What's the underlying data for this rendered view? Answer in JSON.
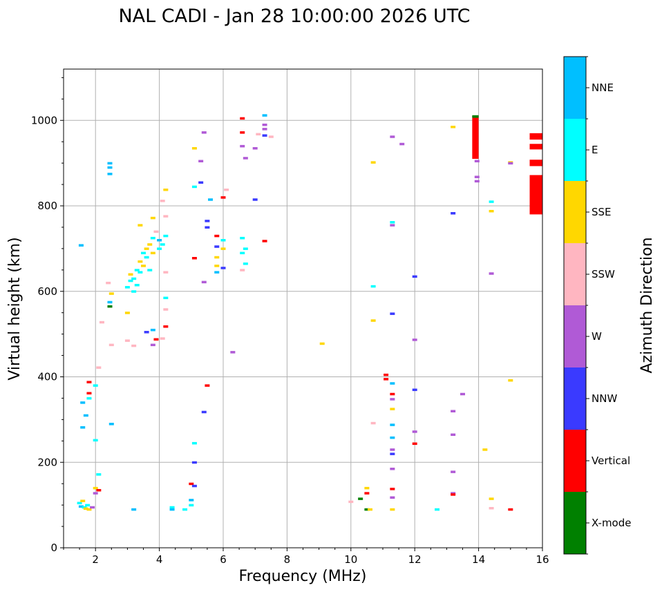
{
  "chart_data": {
    "type": "scatter",
    "title": "NAL CADI - Jan 28 10:00:00 2026 UTC",
    "xlabel": "Frequency (MHz)",
    "ylabel": "Virtual height (km)",
    "xlim": [
      1,
      16
    ],
    "ylim": [
      0,
      1120
    ],
    "xticks": [
      2,
      4,
      6,
      8,
      10,
      12,
      14,
      16
    ],
    "yticks": [
      0,
      200,
      400,
      600,
      800,
      1000
    ],
    "grid": true,
    "colorbar": {
      "label": "Azimuth Direction",
      "categories": [
        {
          "name": "X-mode",
          "color": "#008000"
        },
        {
          "name": "Vertical",
          "color": "#ff0000"
        },
        {
          "name": "NNW",
          "color": "#3a3aff"
        },
        {
          "name": "W",
          "color": "#b05ad6"
        },
        {
          "name": "SSW",
          "color": "#ffb6c1"
        },
        {
          "name": "SSE",
          "color": "#ffd700"
        },
        {
          "name": "E",
          "color": "#00ffff"
        },
        {
          "name": "NNE",
          "color": "#00bfff"
        }
      ]
    },
    "points": [
      {
        "f": 1.5,
        "h": 105,
        "c": "E"
      },
      {
        "f": 1.55,
        "h": 97,
        "c": "NNE"
      },
      {
        "f": 1.6,
        "h": 110,
        "c": "SSE"
      },
      {
        "f": 1.65,
        "h": 95,
        "c": "E"
      },
      {
        "f": 1.7,
        "h": 92,
        "c": "SSE"
      },
      {
        "f": 1.75,
        "h": 100,
        "c": "E"
      },
      {
        "f": 1.8,
        "h": 90,
        "c": "SSE"
      },
      {
        "f": 1.9,
        "h": 95,
        "c": "W"
      },
      {
        "f": 1.55,
        "h": 708,
        "c": "NNE"
      },
      {
        "f": 1.6,
        "h": 282,
        "c": "NNE"
      },
      {
        "f": 1.6,
        "h": 340,
        "c": "NNE"
      },
      {
        "f": 1.7,
        "h": 310,
        "c": "NNE"
      },
      {
        "f": 1.8,
        "h": 350,
        "c": "E"
      },
      {
        "f": 1.8,
        "h": 362,
        "c": "Vertical"
      },
      {
        "f": 1.8,
        "h": 388,
        "c": "Vertical"
      },
      {
        "f": 2.0,
        "h": 380,
        "c": "E"
      },
      {
        "f": 2.0,
        "h": 252,
        "c": "E"
      },
      {
        "f": 2.0,
        "h": 140,
        "c": "SSE"
      },
      {
        "f": 2.0,
        "h": 128,
        "c": "W"
      },
      {
        "f": 2.1,
        "h": 172,
        "c": "E"
      },
      {
        "f": 2.1,
        "h": 135,
        "c": "Vertical"
      },
      {
        "f": 2.1,
        "h": 422,
        "c": "SSW"
      },
      {
        "f": 2.2,
        "h": 528,
        "c": "SSW"
      },
      {
        "f": 2.4,
        "h": 620,
        "c": "SSW"
      },
      {
        "f": 2.45,
        "h": 575,
        "c": "NNE"
      },
      {
        "f": 2.45,
        "h": 565,
        "c": "X-mode"
      },
      {
        "f": 2.45,
        "h": 890,
        "c": "NNE"
      },
      {
        "f": 2.45,
        "h": 875,
        "c": "NNE"
      },
      {
        "f": 2.45,
        "h": 900,
        "c": "NNE"
      },
      {
        "f": 2.5,
        "h": 290,
        "c": "NNE"
      },
      {
        "f": 2.5,
        "h": 475,
        "c": "SSW"
      },
      {
        "f": 2.5,
        "h": 595,
        "c": "SSE"
      },
      {
        "f": 3.0,
        "h": 485,
        "c": "SSW"
      },
      {
        "f": 3.0,
        "h": 550,
        "c": "SSE"
      },
      {
        "f": 3.0,
        "h": 610,
        "c": "E"
      },
      {
        "f": 3.1,
        "h": 625,
        "c": "E"
      },
      {
        "f": 3.1,
        "h": 640,
        "c": "SSE"
      },
      {
        "f": 3.2,
        "h": 600,
        "c": "E"
      },
      {
        "f": 3.2,
        "h": 630,
        "c": "E"
      },
      {
        "f": 3.3,
        "h": 650,
        "c": "E"
      },
      {
        "f": 3.3,
        "h": 615,
        "c": "E"
      },
      {
        "f": 3.4,
        "h": 670,
        "c": "SSE"
      },
      {
        "f": 3.4,
        "h": 645,
        "c": "E"
      },
      {
        "f": 3.5,
        "h": 690,
        "c": "E"
      },
      {
        "f": 3.5,
        "h": 660,
        "c": "SSE"
      },
      {
        "f": 3.6,
        "h": 680,
        "c": "E"
      },
      {
        "f": 3.6,
        "h": 700,
        "c": "SSE"
      },
      {
        "f": 3.7,
        "h": 650,
        "c": "E"
      },
      {
        "f": 3.7,
        "h": 710,
        "c": "SSE"
      },
      {
        "f": 3.8,
        "h": 725,
        "c": "E"
      },
      {
        "f": 3.8,
        "h": 690,
        "c": "SSE"
      },
      {
        "f": 3.9,
        "h": 740,
        "c": "SSW"
      },
      {
        "f": 4.0,
        "h": 700,
        "c": "E"
      },
      {
        "f": 4.0,
        "h": 720,
        "c": "NNE"
      },
      {
        "f": 4.1,
        "h": 710,
        "c": "E"
      },
      {
        "f": 4.2,
        "h": 730,
        "c": "E"
      },
      {
        "f": 3.4,
        "h": 755,
        "c": "SSE"
      },
      {
        "f": 3.8,
        "h": 772,
        "c": "SSE"
      },
      {
        "f": 4.2,
        "h": 776,
        "c": "SSW"
      },
      {
        "f": 4.2,
        "h": 838,
        "c": "SSE"
      },
      {
        "f": 4.1,
        "h": 812,
        "c": "SSW"
      },
      {
        "f": 3.2,
        "h": 473,
        "c": "SSW"
      },
      {
        "f": 3.6,
        "h": 505,
        "c": "NNW"
      },
      {
        "f": 3.8,
        "h": 510,
        "c": "NNE"
      },
      {
        "f": 3.8,
        "h": 475,
        "c": "W"
      },
      {
        "f": 3.9,
        "h": 488,
        "c": "Vertical"
      },
      {
        "f": 4.1,
        "h": 490,
        "c": "SSW"
      },
      {
        "f": 4.2,
        "h": 518,
        "c": "Vertical"
      },
      {
        "f": 4.2,
        "h": 558,
        "c": "SSW"
      },
      {
        "f": 4.2,
        "h": 585,
        "c": "E"
      },
      {
        "f": 4.2,
        "h": 645,
        "c": "SSW"
      },
      {
        "f": 3.2,
        "h": 90,
        "c": "NNE"
      },
      {
        "f": 4.4,
        "h": 95,
        "c": "E"
      },
      {
        "f": 4.4,
        "h": 90,
        "c": "NNE"
      },
      {
        "f": 4.8,
        "h": 90,
        "c": "E"
      },
      {
        "f": 5.0,
        "h": 100,
        "c": "E"
      },
      {
        "f": 5.0,
        "h": 112,
        "c": "NNE"
      },
      {
        "f": 5.0,
        "h": 150,
        "c": "Vertical"
      },
      {
        "f": 5.1,
        "h": 145,
        "c": "NNW"
      },
      {
        "f": 5.1,
        "h": 200,
        "c": "NNW"
      },
      {
        "f": 5.1,
        "h": 245,
        "c": "E"
      },
      {
        "f": 5.1,
        "h": 678,
        "c": "Vertical"
      },
      {
        "f": 5.1,
        "h": 845,
        "c": "E"
      },
      {
        "f": 5.1,
        "h": 935,
        "c": "SSE"
      },
      {
        "f": 5.3,
        "h": 855,
        "c": "NNW"
      },
      {
        "f": 5.3,
        "h": 905,
        "c": "W"
      },
      {
        "f": 5.4,
        "h": 972,
        "c": "W"
      },
      {
        "f": 5.4,
        "h": 622,
        "c": "W"
      },
      {
        "f": 5.4,
        "h": 318,
        "c": "NNW"
      },
      {
        "f": 5.5,
        "h": 380,
        "c": "Vertical"
      },
      {
        "f": 5.5,
        "h": 750,
        "c": "NNW"
      },
      {
        "f": 5.5,
        "h": 765,
        "c": "NNW"
      },
      {
        "f": 5.6,
        "h": 815,
        "c": "NNE"
      },
      {
        "f": 5.8,
        "h": 730,
        "c": "Vertical"
      },
      {
        "f": 5.8,
        "h": 705,
        "c": "NNW"
      },
      {
        "f": 5.8,
        "h": 680,
        "c": "SSE"
      },
      {
        "f": 5.8,
        "h": 660,
        "c": "SSE"
      },
      {
        "f": 5.8,
        "h": 645,
        "c": "NNE"
      },
      {
        "f": 6.0,
        "h": 820,
        "c": "Vertical"
      },
      {
        "f": 6.0,
        "h": 720,
        "c": "E"
      },
      {
        "f": 6.0,
        "h": 700,
        "c": "SSE"
      },
      {
        "f": 6.0,
        "h": 655,
        "c": "NNW"
      },
      {
        "f": 6.1,
        "h": 838,
        "c": "SSW"
      },
      {
        "f": 6.3,
        "h": 458,
        "c": "W"
      },
      {
        "f": 6.6,
        "h": 1005,
        "c": "Vertical"
      },
      {
        "f": 6.6,
        "h": 972,
        "c": "Vertical"
      },
      {
        "f": 6.6,
        "h": 940,
        "c": "W"
      },
      {
        "f": 6.6,
        "h": 725,
        "c": "E"
      },
      {
        "f": 6.6,
        "h": 690,
        "c": "E"
      },
      {
        "f": 6.6,
        "h": 650,
        "c": "SSW"
      },
      {
        "f": 6.7,
        "h": 912,
        "c": "W"
      },
      {
        "f": 6.7,
        "h": 665,
        "c": "E"
      },
      {
        "f": 6.7,
        "h": 700,
        "c": "E"
      },
      {
        "f": 7.0,
        "h": 935,
        "c": "W"
      },
      {
        "f": 7.0,
        "h": 815,
        "c": "NNW"
      },
      {
        "f": 7.1,
        "h": 968,
        "c": "SSW"
      },
      {
        "f": 7.3,
        "h": 1012,
        "c": "NNE"
      },
      {
        "f": 7.3,
        "h": 990,
        "c": "W"
      },
      {
        "f": 7.3,
        "h": 980,
        "c": "W"
      },
      {
        "f": 7.3,
        "h": 965,
        "c": "NNW"
      },
      {
        "f": 7.3,
        "h": 718,
        "c": "Vertical"
      },
      {
        "f": 7.5,
        "h": 962,
        "c": "SSW"
      },
      {
        "f": 9.1,
        "h": 478,
        "c": "SSE"
      },
      {
        "f": 10.0,
        "h": 108,
        "c": "SSW"
      },
      {
        "f": 10.3,
        "h": 115,
        "c": "X-mode"
      },
      {
        "f": 10.5,
        "h": 90,
        "c": "X-mode"
      },
      {
        "f": 10.5,
        "h": 128,
        "c": "Vertical"
      },
      {
        "f": 10.6,
        "h": 90,
        "c": "SSE"
      },
      {
        "f": 10.5,
        "h": 140,
        "c": "SSE"
      },
      {
        "f": 10.7,
        "h": 292,
        "c": "SSW"
      },
      {
        "f": 10.7,
        "h": 532,
        "c": "SSE"
      },
      {
        "f": 10.7,
        "h": 612,
        "c": "E"
      },
      {
        "f": 10.7,
        "h": 902,
        "c": "SSE"
      },
      {
        "f": 11.1,
        "h": 405,
        "c": "Vertical"
      },
      {
        "f": 11.1,
        "h": 395,
        "c": "Vertical"
      },
      {
        "f": 11.3,
        "h": 385,
        "c": "NNE"
      },
      {
        "f": 11.3,
        "h": 360,
        "c": "Vertical"
      },
      {
        "f": 11.3,
        "h": 348,
        "c": "W"
      },
      {
        "f": 11.3,
        "h": 325,
        "c": "SSE"
      },
      {
        "f": 11.3,
        "h": 288,
        "c": "NNE"
      },
      {
        "f": 11.3,
        "h": 258,
        "c": "NNE"
      },
      {
        "f": 11.3,
        "h": 230,
        "c": "W"
      },
      {
        "f": 11.3,
        "h": 220,
        "c": "NNW"
      },
      {
        "f": 11.3,
        "h": 185,
        "c": "W"
      },
      {
        "f": 11.3,
        "h": 138,
        "c": "Vertical"
      },
      {
        "f": 11.3,
        "h": 118,
        "c": "W"
      },
      {
        "f": 11.3,
        "h": 90,
        "c": "SSE"
      },
      {
        "f": 11.3,
        "h": 548,
        "c": "NNW"
      },
      {
        "f": 11.3,
        "h": 755,
        "c": "W"
      },
      {
        "f": 11.3,
        "h": 762,
        "c": "E"
      },
      {
        "f": 11.3,
        "h": 962,
        "c": "W"
      },
      {
        "f": 11.6,
        "h": 945,
        "c": "W"
      },
      {
        "f": 12.0,
        "h": 635,
        "c": "NNW"
      },
      {
        "f": 12.0,
        "h": 487,
        "c": "W"
      },
      {
        "f": 12.0,
        "h": 370,
        "c": "NNW"
      },
      {
        "f": 12.0,
        "h": 272,
        "c": "W"
      },
      {
        "f": 12.0,
        "h": 244,
        "c": "Vertical"
      },
      {
        "f": 12.7,
        "h": 90,
        "c": "E"
      },
      {
        "f": 13.2,
        "h": 783,
        "c": "NNW"
      },
      {
        "f": 13.2,
        "h": 320,
        "c": "W"
      },
      {
        "f": 13.2,
        "h": 265,
        "c": "W"
      },
      {
        "f": 13.2,
        "h": 178,
        "c": "W"
      },
      {
        "f": 13.2,
        "h": 128,
        "c": "W"
      },
      {
        "f": 13.2,
        "h": 125,
        "c": "Vertical"
      },
      {
        "f": 13.2,
        "h": 985,
        "c": "SSE"
      },
      {
        "f": 13.5,
        "h": 360,
        "c": "W"
      },
      {
        "f": 13.95,
        "h": 905,
        "c": "W"
      },
      {
        "f": 13.95,
        "h": 868,
        "c": "W"
      },
      {
        "f": 13.95,
        "h": 858,
        "c": "W"
      },
      {
        "f": 14.2,
        "h": 230,
        "c": "SSE"
      },
      {
        "f": 14.4,
        "h": 810,
        "c": "E"
      },
      {
        "f": 14.4,
        "h": 788,
        "c": "SSE"
      },
      {
        "f": 14.4,
        "h": 642,
        "c": "W"
      },
      {
        "f": 14.4,
        "h": 115,
        "c": "SSE"
      },
      {
        "f": 14.4,
        "h": 93,
        "c": "SSW"
      },
      {
        "f": 15.0,
        "h": 902,
        "c": "SSE"
      },
      {
        "f": 15.0,
        "h": 900,
        "c": "W"
      },
      {
        "f": 15.0,
        "h": 392,
        "c": "SSE"
      },
      {
        "f": 15.0,
        "h": 90,
        "c": "Vertical"
      }
    ],
    "blocks": [
      {
        "f0": 13.8,
        "f1": 14.0,
        "h0": 910,
        "h1": 1010,
        "c": "Vertical"
      },
      {
        "f0": 13.8,
        "f1": 14.0,
        "h0": 1006,
        "h1": 1012,
        "c": "X-mode"
      },
      {
        "f0": 15.6,
        "f1": 16.0,
        "h0": 955,
        "h1": 970,
        "c": "Vertical"
      },
      {
        "f0": 15.6,
        "f1": 16.0,
        "h0": 932,
        "h1": 945,
        "c": "Vertical"
      },
      {
        "f0": 15.6,
        "f1": 16.0,
        "h0": 893,
        "h1": 908,
        "c": "Vertical"
      },
      {
        "f0": 15.6,
        "f1": 16.0,
        "h0": 780,
        "h1": 872,
        "c": "Vertical"
      }
    ]
  }
}
